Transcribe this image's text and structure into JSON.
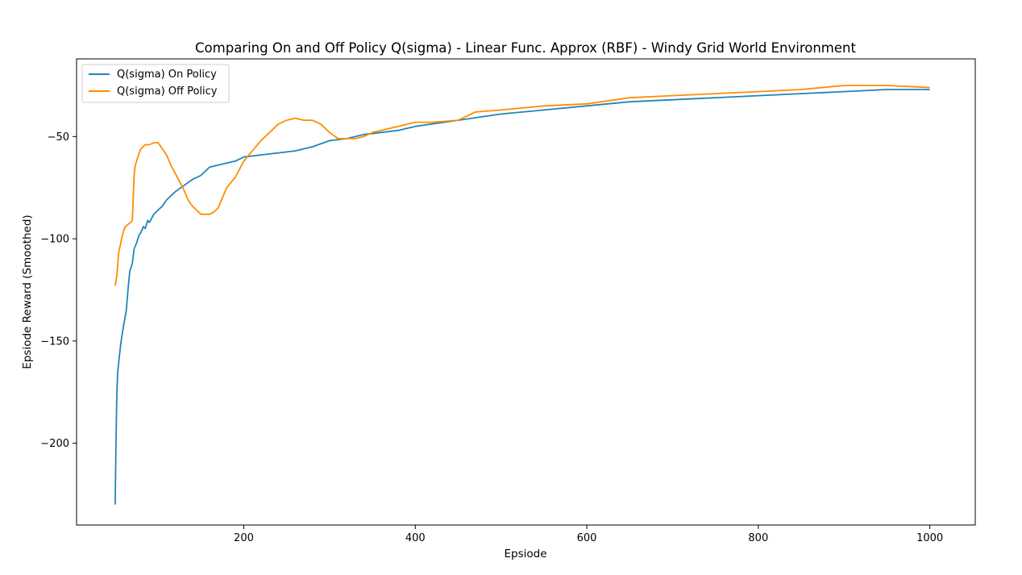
{
  "chart_data": {
    "type": "line",
    "title": "Comparing On and Off Policy Q(sigma) - Linear Func. Approx (RBF) - Windy Grid World Environment",
    "xlabel": "Epsiode",
    "ylabel": "Epsiode Reward (Smoothed)",
    "xlim": [
      5,
      1053
    ],
    "ylim": [
      -240,
      -12
    ],
    "xticks": [
      200,
      400,
      600,
      800,
      1000
    ],
    "xtick_labels": [
      "200",
      "400",
      "600",
      "800",
      "1000"
    ],
    "yticks": [
      -200,
      -150,
      -100,
      -50
    ],
    "ytick_labels": [
      "−200",
      "−150",
      "−100",
      "−50"
    ],
    "grid": false,
    "legend_position": "top-left",
    "series": [
      {
        "name": "Q(sigma) On Policy",
        "color": "#1f86b8",
        "x": [
          50,
          51,
          52,
          53,
          55,
          57,
          60,
          63,
          65,
          67,
          70,
          72,
          75,
          78,
          80,
          83,
          85,
          88,
          90,
          95,
          100,
          105,
          110,
          115,
          120,
          130,
          140,
          150,
          160,
          170,
          180,
          190,
          200,
          220,
          240,
          260,
          280,
          300,
          320,
          340,
          360,
          380,
          400,
          450,
          500,
          550,
          600,
          650,
          700,
          750,
          800,
          850,
          900,
          950,
          1000
        ],
        "y": [
          -230,
          -200,
          -175,
          -165,
          -157,
          -150,
          -142,
          -135,
          -125,
          -116,
          -112,
          -105,
          -102,
          -98,
          -97,
          -94,
          -95,
          -91,
          -92,
          -88,
          -86,
          -84,
          -81,
          -79,
          -77,
          -74,
          -71,
          -69,
          -65,
          -64,
          -63,
          -62,
          -60,
          -59,
          -58,
          -57,
          -55,
          -52,
          -51,
          -49,
          -48,
          -47,
          -45,
          -42,
          -39,
          -37,
          -35,
          -33,
          -32,
          -31,
          -30,
          -29,
          -28,
          -27,
          -27
        ]
      },
      {
        "name": "Q(sigma) Off Policy",
        "color": "#ff8c00",
        "x": [
          50,
          52,
          54,
          56,
          58,
          60,
          62,
          65,
          68,
          70,
          72,
          73,
          75,
          78,
          80,
          85,
          90,
          95,
          100,
          105,
          110,
          115,
          120,
          125,
          130,
          135,
          140,
          145,
          150,
          155,
          160,
          165,
          170,
          175,
          180,
          190,
          200,
          210,
          220,
          230,
          240,
          250,
          260,
          270,
          280,
          290,
          300,
          310,
          320,
          330,
          340,
          350,
          360,
          380,
          400,
          420,
          450,
          470,
          500,
          550,
          600,
          650,
          700,
          750,
          800,
          850,
          900,
          950,
          1000
        ],
        "y": [
          -123,
          -118,
          -107,
          -103,
          -99,
          -96,
          -94,
          -93,
          -92,
          -91,
          -70,
          -65,
          -62,
          -58,
          -56,
          -54,
          -54,
          -53,
          -53,
          -56,
          -59,
          -64,
          -68,
          -72,
          -76,
          -81,
          -84,
          -86,
          -88,
          -88,
          -88,
          -87,
          -85,
          -80,
          -75,
          -70,
          -62,
          -57,
          -52,
          -48,
          -44,
          -42,
          -41,
          -42,
          -42,
          -44,
          -48,
          -51,
          -51,
          -51,
          -50,
          -48,
          -47,
          -45,
          -43,
          -43,
          -42,
          -38,
          -37,
          -35,
          -34,
          -31,
          -30,
          -29,
          -28,
          -27,
          -25,
          -25,
          -26
        ]
      }
    ]
  }
}
